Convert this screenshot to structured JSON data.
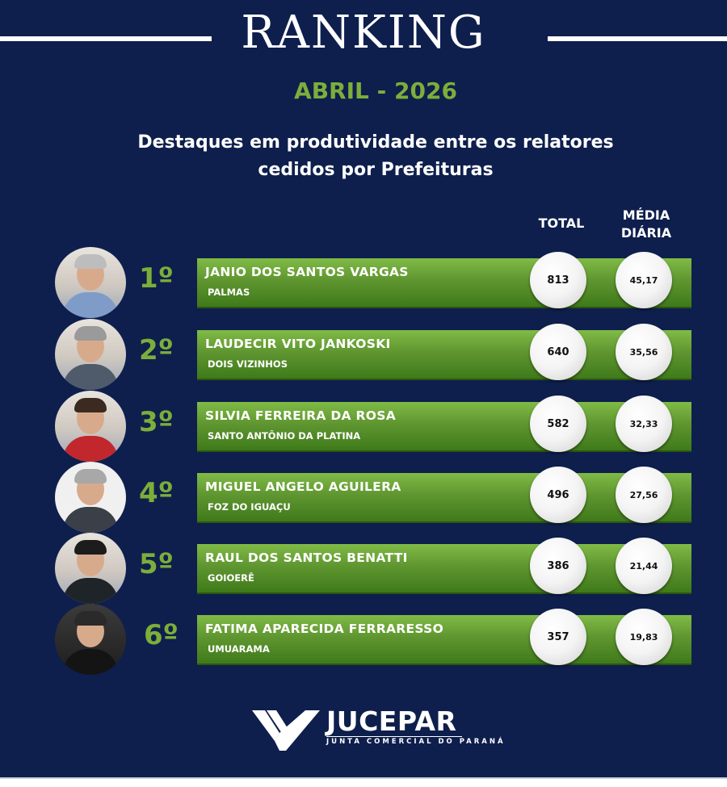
{
  "header": {
    "title": "RANKING",
    "period": "ABRIL - 2026",
    "subtitle_line1": "Destaques em produtividade entre os relatores",
    "subtitle_line2": "cedidos por Prefeituras"
  },
  "columns": {
    "total": "TOTAL",
    "media_line1": "MÉDIA",
    "media_line2": "DIÁRIA"
  },
  "ranking": [
    {
      "rank": "1º",
      "name": "JANIO DOS SANTOS VARGAS",
      "city": "PALMAS",
      "total": "813",
      "media": "45,17"
    },
    {
      "rank": "2º",
      "name": "LAUDECIR VITO JANKOSKI",
      "city": "DOIS VIZINHOS",
      "total": "640",
      "media": "35,56"
    },
    {
      "rank": "3º",
      "name": "SILVIA FERREIRA DA ROSA",
      "city": "SANTO ANTÔNIO DA PLATINA",
      "total": "582",
      "media": "32,33"
    },
    {
      "rank": "4º",
      "name": "MIGUEL ANGELO AGUILERA",
      "city": "FOZ DO IGUAÇU",
      "total": "496",
      "media": "27,56"
    },
    {
      "rank": "5º",
      "name": "RAUL DOS SANTOS BENATTI",
      "city": "GOIOERÊ",
      "total": "386",
      "media": "21,44"
    },
    {
      "rank": "6º",
      "name": "FATIMA APARECIDA FERRARESSO",
      "city": "UMUARAMA",
      "total": "357",
      "media": "19,83"
    }
  ],
  "footer": {
    "logo_name": "JUCEPAR",
    "logo_tagline": "JUNTA COMERCIAL DO PARANÁ"
  },
  "colors": {
    "background": "#0e1f4d",
    "accent_green": "#7cae3a",
    "bar_green": "#5f9630"
  }
}
